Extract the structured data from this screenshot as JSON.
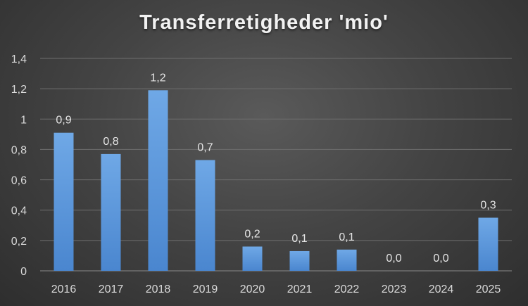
{
  "chart_data": {
    "type": "bar",
    "title": "Transferretigheder 'mio'",
    "categories": [
      "2016",
      "2017",
      "2018",
      "2019",
      "2020",
      "2021",
      "2022",
      "2023",
      "2024",
      "2025"
    ],
    "values": [
      0.91,
      0.77,
      1.19,
      0.73,
      0.16,
      0.13,
      0.14,
      0.0,
      0.0,
      0.35
    ],
    "data_labels": [
      "0,9",
      "0,8",
      "1,2",
      "0,7",
      "0,2",
      "0,1",
      "0,1",
      "0,0",
      "0,0",
      "0,3"
    ],
    "ylim": [
      0,
      1.4
    ],
    "yticks": [
      0,
      0.2,
      0.4,
      0.6,
      0.8,
      1,
      1.2,
      1.4
    ],
    "ytick_labels": [
      "0",
      "0,2",
      "0,4",
      "0,6",
      "0,8",
      "1",
      "1,2",
      "1,4"
    ],
    "grid": true,
    "legend": "none",
    "colors": {
      "bar_top": "#6fa8e6",
      "bar_bottom": "#4a86cf",
      "gridline": "#6e6e6e",
      "text": "#d9d9d9"
    }
  }
}
